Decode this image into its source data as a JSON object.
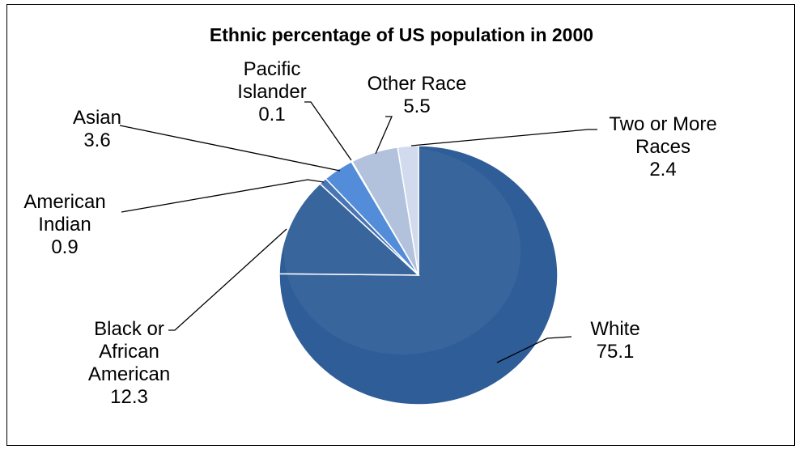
{
  "chart_data": {
    "type": "pie",
    "title": "Ethnic percentage of US population in 2000",
    "slices": [
      {
        "name": "White",
        "label_lines": [
          "White"
        ],
        "value": 75.1,
        "value_text": "75.1",
        "color": "#2f5d98"
      },
      {
        "name": "Black or African American",
        "label_lines": [
          "Black or",
          "African",
          "American"
        ],
        "value": 12.3,
        "value_text": "12.3",
        "color": "#2f5d98"
      },
      {
        "name": "American Indian",
        "label_lines": [
          "American",
          "Indian"
        ],
        "value": 0.9,
        "value_text": "0.9",
        "color": "#3f6fb0"
      },
      {
        "name": "Asian",
        "label_lines": [
          "Asian"
        ],
        "value": 3.6,
        "value_text": "3.6",
        "color": "#4a86d6"
      },
      {
        "name": "Pacific Islander",
        "label_lines": [
          "Pacific",
          "Islander"
        ],
        "value": 0.1,
        "value_text": "0.1",
        "color": "#8aa7cf"
      },
      {
        "name": "Other Race",
        "label_lines": [
          "Other Race"
        ],
        "value": 5.5,
        "value_text": "5.5",
        "color": "#aebfdc"
      },
      {
        "name": "Two or More Races",
        "label_lines": [
          "Two or More",
          "Races"
        ],
        "value": 2.4,
        "value_text": "2.4",
        "color": "#cfdaec"
      }
    ],
    "legend": "none",
    "data_labels": "outside with leader lines"
  }
}
